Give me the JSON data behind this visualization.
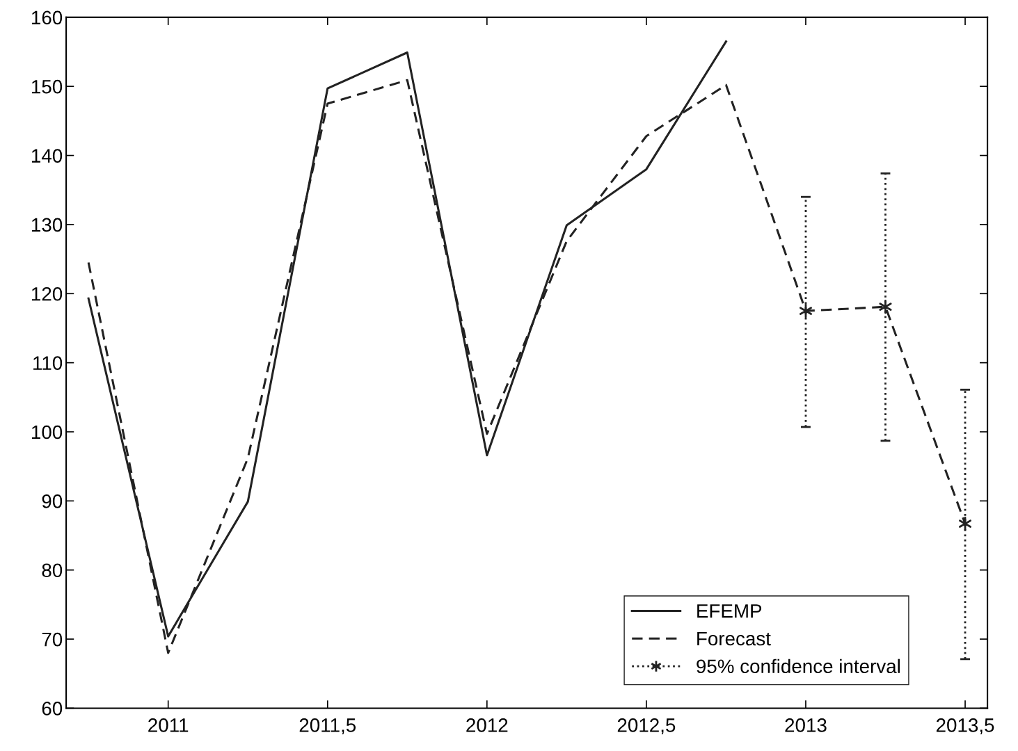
{
  "chart_data": {
    "type": "line",
    "legend": "bottom right",
    "grid": false,
    "xlim": [
      2010.68,
      2013.57
    ],
    "ylim": [
      60,
      160
    ],
    "xticks": [
      2011,
      {
        "value": 2011.5,
        "label": "2011,5"
      },
      2012,
      {
        "value": 2012.5,
        "label": "2012,5"
      },
      2013,
      {
        "value": 2013.5,
        "label": "2013,5"
      }
    ],
    "yticks": [
      60,
      70,
      80,
      90,
      100,
      110,
      120,
      130,
      140,
      150,
      160
    ],
    "series": [
      {
        "name": "EFEMP",
        "color": "#222222",
        "line_style": "solid",
        "x": [
          2010.75,
          2011,
          2011.25,
          2011.5,
          2011.75,
          2012,
          2012.25,
          2012.5,
          2012.75
        ],
        "values": [
          119.3,
          70.4,
          89.9,
          149.7,
          154.9,
          96.6,
          129.9,
          138.0,
          156.5
        ]
      },
      {
        "name": "Forecast",
        "color": "#222222",
        "line_style": "dashed",
        "x": [
          2010.75,
          2011,
          2011.25,
          2011.5,
          2011.75,
          2012,
          2012.25,
          2012.5,
          2012.75,
          2013,
          2013.25,
          2013.5
        ],
        "values": [
          124.5,
          68.0,
          96.2,
          147.5,
          150.9,
          99.7,
          127.6,
          142.8,
          150.2,
          117.5,
          118.1,
          86.7
        ]
      },
      {
        "name": "95% confidence interval",
        "type": "scatter",
        "color": "#222222",
        "line_style": "dotted",
        "marker": "cross",
        "x": [
          2013,
          2013.25,
          2013.5
        ],
        "values": [
          117.5,
          118.1,
          86.7
        ],
        "errors": [
          [
            100.7,
            134.0
          ],
          [
            98.7,
            137.4
          ],
          [
            67.1,
            106.1
          ]
        ]
      }
    ]
  }
}
